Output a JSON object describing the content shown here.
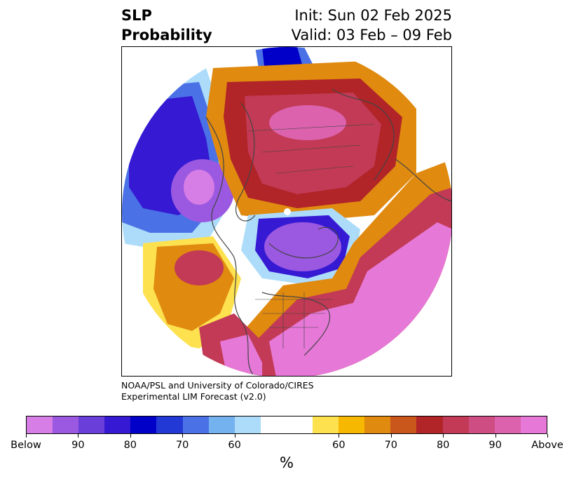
{
  "title": {
    "left_line1": "SLP",
    "left_line2": "Probability",
    "right_line1": "Init: Sun 02 Feb 2025",
    "right_line2": "Valid: 03 Feb – 09 Feb"
  },
  "credit": {
    "line1": "NOAA/PSL and University of Colorado/CIRES",
    "line2": "Experimental LIM Forecast (v2.0)"
  },
  "colorbar": {
    "colors": [
      "#d77ee6",
      "#9b58e0",
      "#6a3fd9",
      "#3519d3",
      "#0000c8",
      "#2339d6",
      "#4a72e6",
      "#74b1ef",
      "#acdcf9",
      "#ffffff",
      "#ffffff",
      "#fde14f",
      "#f6b800",
      "#e08a10",
      "#c9561b",
      "#b12428",
      "#c23a55",
      "#ce4e84",
      "#dc62ad",
      "#e678d8"
    ],
    "tick_labels": [
      "Below",
      "90",
      "80",
      "70",
      "60",
      "60",
      "70",
      "80",
      "90",
      "Above"
    ],
    "unit_label": "%"
  },
  "map": {
    "colors": {
      "above_high": "#e678d8",
      "above_mid": "#c23a55",
      "above_low": "#e08a10",
      "above_min": "#fde14f",
      "below_high": "#d77ee6",
      "below_mid": "#3519d3",
      "below_low": "#4a72e6",
      "below_min": "#acdcf9",
      "coast": "#444444"
    }
  }
}
